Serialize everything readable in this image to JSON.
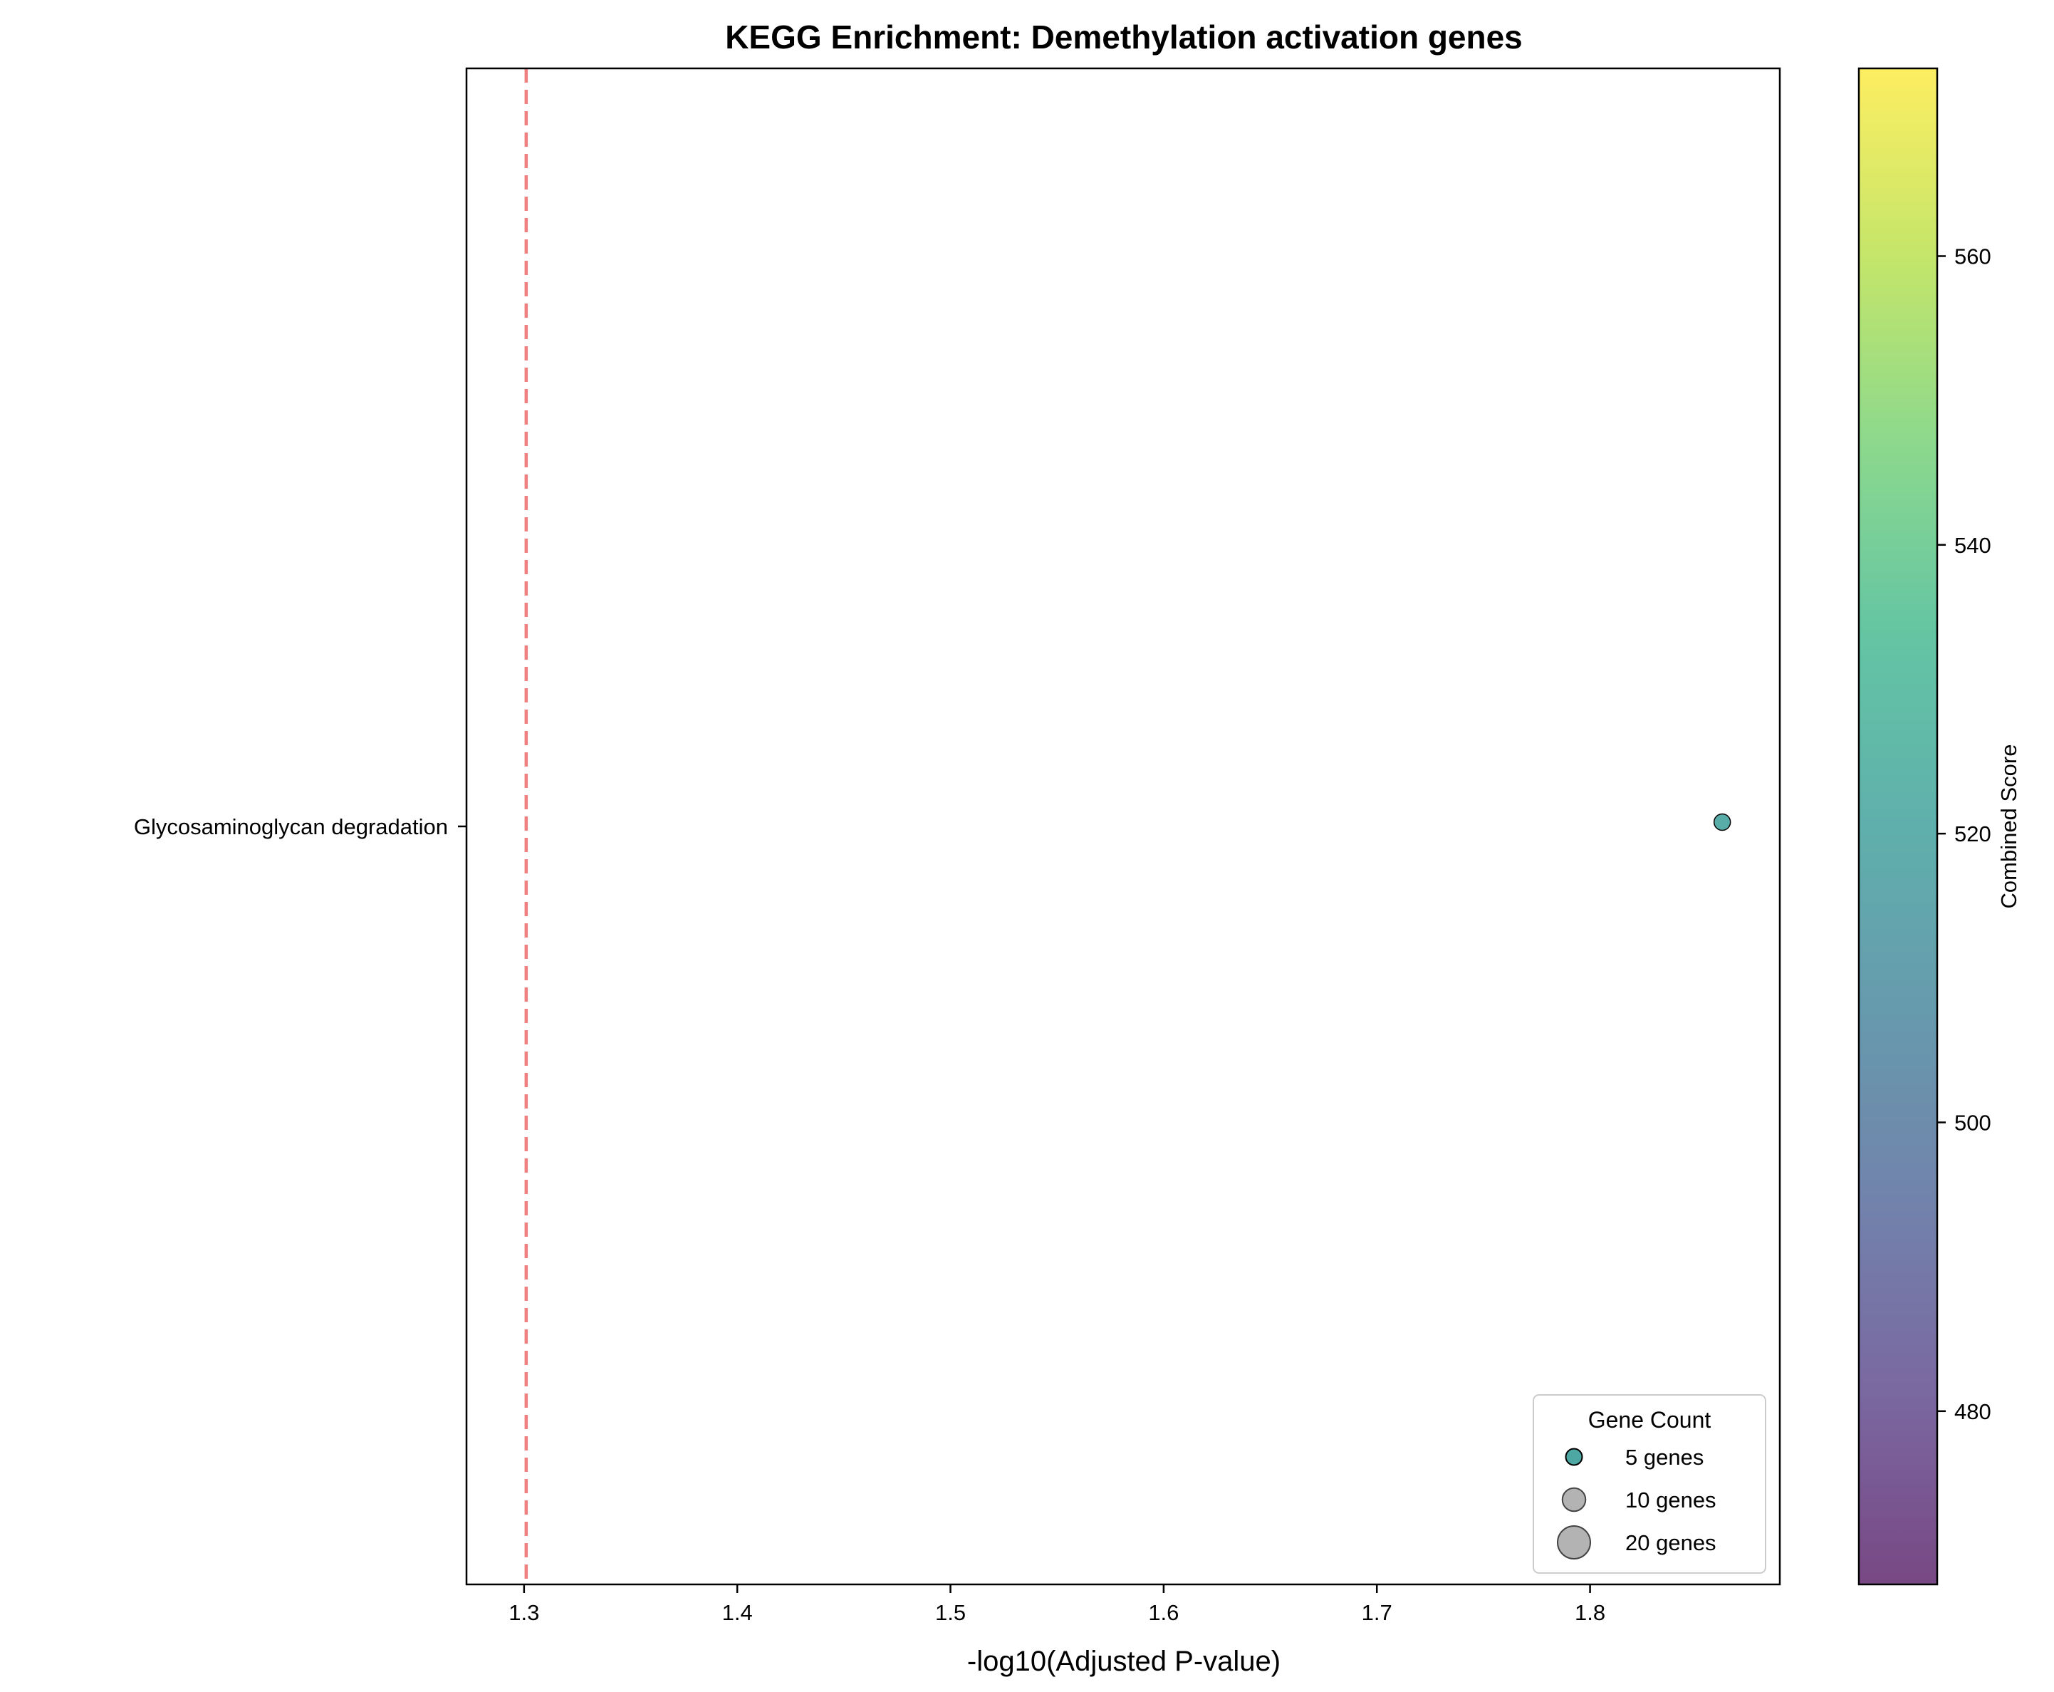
{
  "chart_data": {
    "type": "scatter",
    "title": "KEGG Enrichment: Demethylation activation genes",
    "xlabel": "-log10(Adjusted P-value)",
    "ylabel": "",
    "xlim": [
      1.273,
      1.889
    ],
    "xticks": [
      1.3,
      1.4,
      1.5,
      1.6,
      1.7,
      1.8
    ],
    "xtick_labels": [
      "1.3",
      "1.4",
      "1.5",
      "1.6",
      "1.7",
      "1.8"
    ],
    "categories": [
      "Glycosaminoglycan degradation"
    ],
    "points": [
      {
        "category": "Glycosaminoglycan degradation",
        "x": 1.862,
        "gene_count": 5,
        "combined_score": 520.5
      }
    ],
    "threshold_line": {
      "x": 1.301,
      "color": "#f08080",
      "style": "dashed"
    },
    "colorbar": {
      "label": "Combined Score",
      "colormap": "viridis",
      "range": [
        468,
        573
      ],
      "ticks": [
        480,
        500,
        520,
        540,
        560
      ],
      "tick_labels": [
        "480",
        "500",
        "520",
        "540",
        "560"
      ]
    },
    "legend": {
      "title": "Gene Count",
      "placement": "lower-right",
      "entries": [
        {
          "label": "5 genes",
          "count": 5
        },
        {
          "label": "10 genes",
          "count": 10
        },
        {
          "label": "20 genes",
          "count": 20
        }
      ]
    },
    "grid": false
  }
}
